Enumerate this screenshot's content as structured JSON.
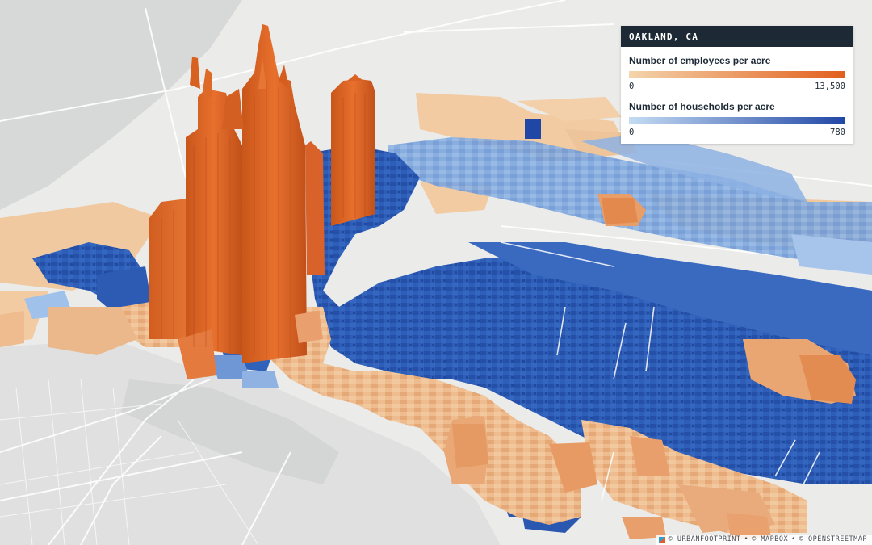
{
  "legend": {
    "header": "OAKLAND, CA",
    "employees": {
      "title": "Number of employees per acre",
      "min": "0",
      "max": "13,500",
      "color_low": "#f4d4ac",
      "color_high": "#e25f1c"
    },
    "households": {
      "title": "Number of households per acre",
      "min": "0",
      "max": "780",
      "color_low": "#c5dcf3",
      "color_high": "#2147a6"
    }
  },
  "attribution": {
    "urbanfootprint": "© URBANFOOTPRINT",
    "mapbox": "© MAPBOX",
    "openstreetmap": "© OPENSTREETMAP",
    "separator": "•"
  },
  "icons": {
    "attribution_logo": "urbanfootprint-logo-icon"
  }
}
